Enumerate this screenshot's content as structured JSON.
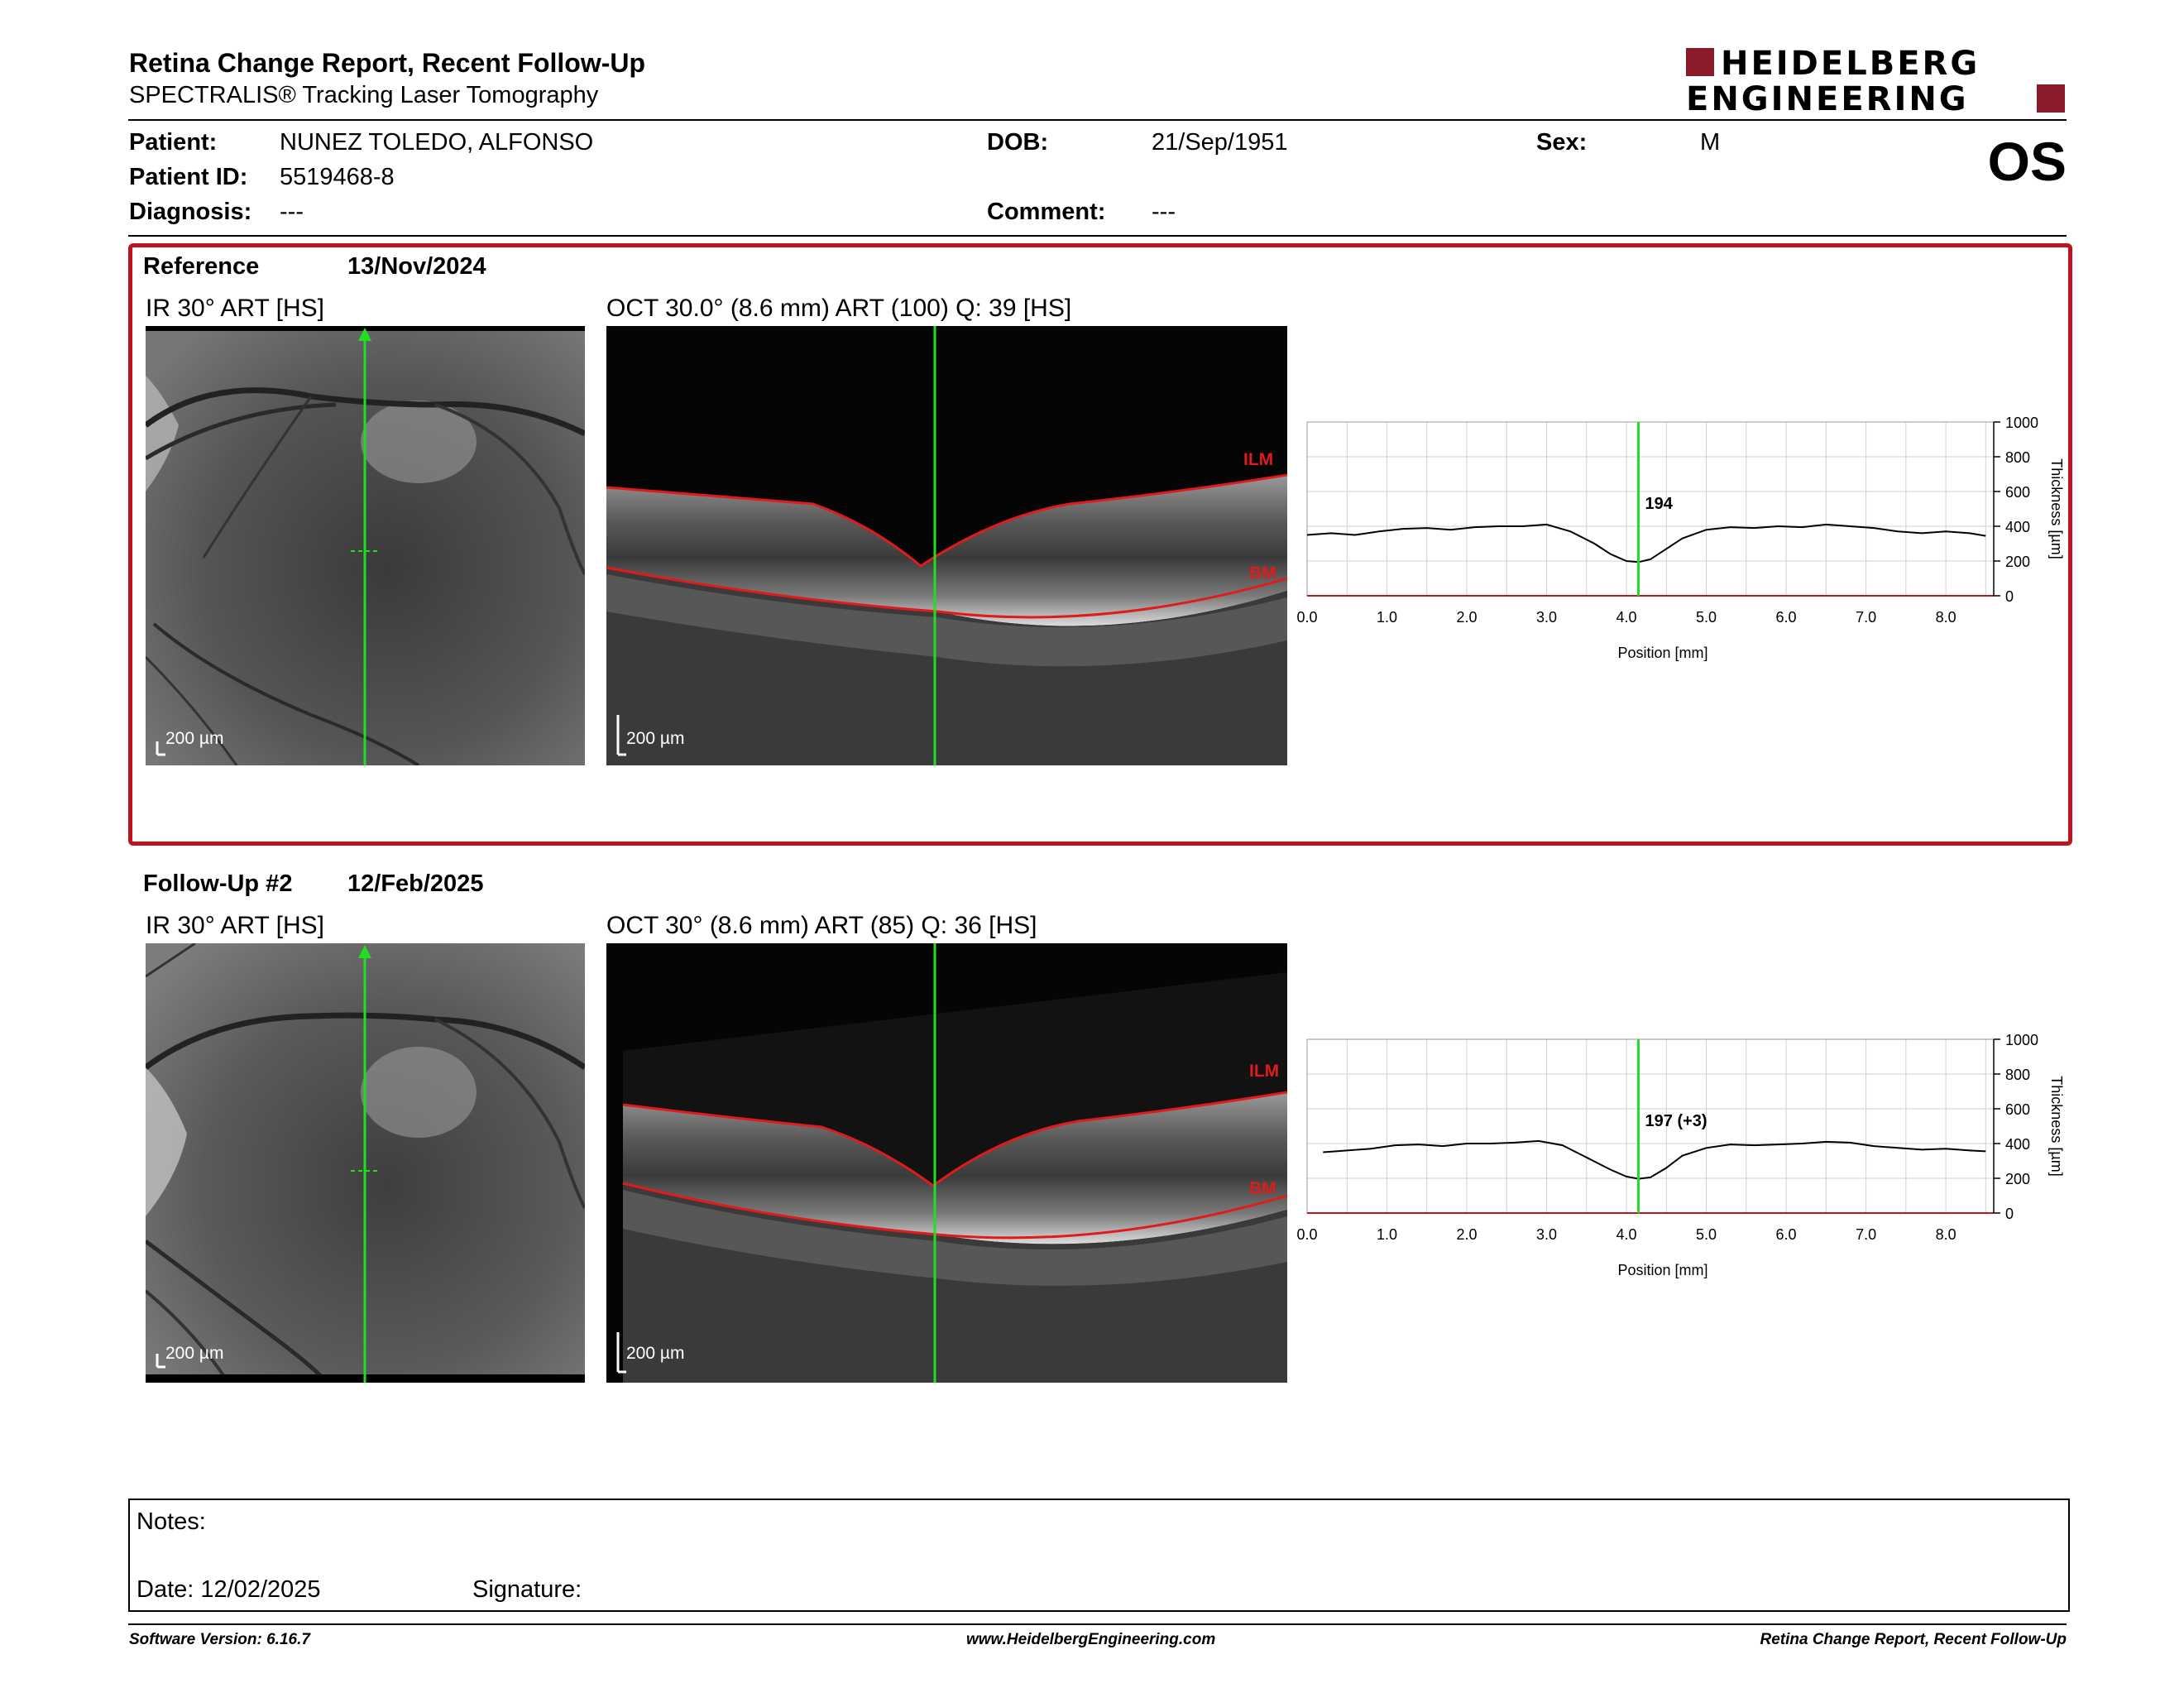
{
  "header": {
    "title": "Retina Change Report, Recent Follow-Up",
    "subtitle": "SPECTRALIS® Tracking Laser Tomography",
    "logo_line1": "HEIDELBERG",
    "logo_line2": "ENGINEERING",
    "brand_color": "#8b1a2b"
  },
  "patient": {
    "patient_label": "Patient:",
    "patient_value": "NUNEZ TOLEDO, ALFONSO",
    "id_label": "Patient ID:",
    "id_value": "5519468-8",
    "diagnosis_label": "Diagnosis:",
    "diagnosis_value": "---",
    "dob_label": "DOB:",
    "dob_value": "21/Sep/1951",
    "comment_label": "Comment:",
    "comment_value": "---",
    "sex_label": "Sex:",
    "sex_value": "M",
    "eye": "OS"
  },
  "reference": {
    "label": "Reference",
    "date": "13/Nov/2024",
    "ir_label": "IR 30° ART [HS]",
    "oct_label": "OCT 30.0° (8.6 mm) ART (100) Q: 39 [HS]",
    "ir_scale": "200 µm",
    "oct_scale": "200 µm",
    "ilm": "ILM",
    "bm": "BM"
  },
  "followup": {
    "label": "Follow-Up #2",
    "date": "12/Feb/2025",
    "ir_label": "IR 30° ART [HS]",
    "oct_label": "OCT 30° (8.6 mm) ART (85) Q: 36 [HS]",
    "ir_scale": "200 µm",
    "oct_scale": "200 µm",
    "ilm": "ILM",
    "bm": "BM"
  },
  "notes": {
    "notes_label": "Notes:",
    "date_label": "Date: 12/02/2025",
    "signature_label": "Signature:"
  },
  "footer": {
    "software": "Software Version: 6.16.7",
    "website": "www.HeidelbergEngineering.com",
    "report": "Retina Change Report, Recent Follow-Up"
  },
  "chart_data": [
    {
      "type": "line",
      "xlabel": "Position [mm]",
      "ylabel": "Thickness [µm]",
      "xlim": [
        0,
        8.6
      ],
      "ylim": [
        0,
        1000
      ],
      "x_ticks": [
        "0.0",
        "1.0",
        "2.0",
        "3.0",
        "4.0",
        "5.0",
        "6.0",
        "7.0",
        "8.0"
      ],
      "y_ticks": [
        "0",
        "200",
        "400",
        "600",
        "800",
        "1000"
      ],
      "grid": true,
      "cursor_x": 4.15,
      "cursor_label": "194",
      "series": [
        {
          "x": [
            0.0,
            0.3,
            0.6,
            0.9,
            1.2,
            1.5,
            1.8,
            2.1,
            2.4,
            2.7,
            3.0,
            3.3,
            3.6,
            3.8,
            4.0,
            4.15,
            4.3,
            4.5,
            4.7,
            5.0,
            5.3,
            5.6,
            5.9,
            6.2,
            6.5,
            6.8,
            7.1,
            7.4,
            7.7,
            8.0,
            8.3,
            8.5
          ],
          "y": [
            350,
            360,
            350,
            370,
            385,
            390,
            380,
            395,
            400,
            400,
            410,
            370,
            300,
            240,
            200,
            194,
            210,
            270,
            330,
            380,
            395,
            390,
            400,
            395,
            410,
            400,
            390,
            370,
            360,
            370,
            360,
            345
          ]
        }
      ]
    },
    {
      "type": "line",
      "xlabel": "Position [mm]",
      "ylabel": "Thickness [µm]",
      "xlim": [
        0,
        8.6
      ],
      "ylim": [
        0,
        1000
      ],
      "x_ticks": [
        "0.0",
        "1.0",
        "2.0",
        "3.0",
        "4.0",
        "5.0",
        "6.0",
        "7.0",
        "8.0"
      ],
      "y_ticks": [
        "0",
        "200",
        "400",
        "600",
        "800",
        "1000"
      ],
      "grid": true,
      "cursor_x": 4.15,
      "cursor_label": "197 (+3)",
      "series": [
        {
          "x": [
            0.2,
            0.5,
            0.8,
            1.1,
            1.4,
            1.7,
            2.0,
            2.3,
            2.6,
            2.9,
            3.2,
            3.5,
            3.8,
            4.0,
            4.15,
            4.3,
            4.5,
            4.7,
            5.0,
            5.3,
            5.6,
            5.9,
            6.2,
            6.5,
            6.8,
            7.1,
            7.4,
            7.7,
            8.0,
            8.3,
            8.5
          ],
          "y": [
            350,
            360,
            370,
            390,
            395,
            385,
            400,
            400,
            405,
            415,
            390,
            320,
            250,
            210,
            197,
            205,
            260,
            330,
            375,
            395,
            390,
            395,
            400,
            410,
            405,
            385,
            375,
            365,
            370,
            360,
            355
          ]
        }
      ]
    }
  ]
}
